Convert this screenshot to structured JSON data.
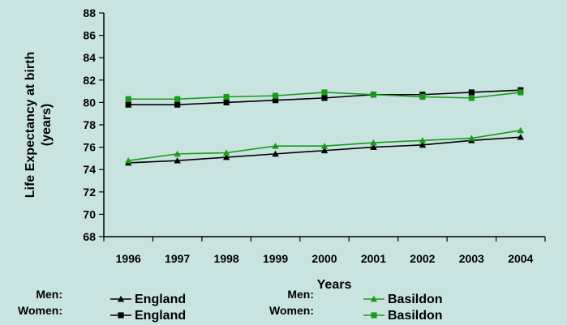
{
  "chart_data": {
    "type": "line",
    "title": "",
    "xlabel": "Years",
    "ylabel": [
      "Life Expectancy at birth",
      "(years)"
    ],
    "x": [
      "1996",
      "1997",
      "1998",
      "1999",
      "2000",
      "2001",
      "2002",
      "2003",
      "2004"
    ],
    "ylim": [
      68,
      88
    ],
    "yticks": [
      68,
      70,
      72,
      74,
      76,
      78,
      80,
      82,
      84,
      86,
      88
    ],
    "grid": false,
    "series": [
      {
        "name": "England",
        "group": "Men:",
        "color": "#000000",
        "marker": "triangle",
        "values": [
          74.6,
          74.8,
          75.1,
          75.4,
          75.7,
          76.0,
          76.2,
          76.6,
          76.9
        ]
      },
      {
        "name": "England",
        "group": "Women:",
        "color": "#000000",
        "marker": "square",
        "values": [
          79.8,
          79.8,
          80.0,
          80.2,
          80.4,
          80.7,
          80.7,
          80.9,
          81.1
        ]
      },
      {
        "name": "Basildon",
        "group": "Men:",
        "color": "#1a9a1a",
        "marker": "triangle",
        "values": [
          74.8,
          75.4,
          75.5,
          76.1,
          76.1,
          76.4,
          76.6,
          76.8,
          77.5
        ]
      },
      {
        "name": "Basildon",
        "group": "Women:",
        "color": "#1a9a1a",
        "marker": "square",
        "values": [
          80.3,
          80.3,
          80.5,
          80.6,
          80.9,
          80.7,
          80.5,
          80.4,
          80.9
        ]
      }
    ],
    "legend": {
      "placement": "bottom",
      "rows": [
        {
          "left_prefix": "Men:",
          "left_series": 0,
          "right_prefix": "Men:",
          "right_series": 2
        },
        {
          "left_prefix": "Women:",
          "left_series": 1,
          "right_prefix": "Women:",
          "right_series": 3
        }
      ]
    }
  }
}
